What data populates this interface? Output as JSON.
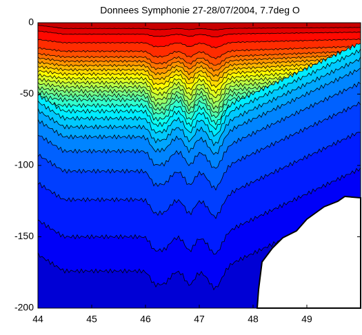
{
  "chart_data": {
    "type": "contour",
    "title": "Donnees Symphonie 27-28/07/2004, 7.7deg O",
    "xlim": [
      44,
      50
    ],
    "xticks": [
      44,
      45,
      46,
      47,
      48,
      49
    ],
    "ylim": [
      -200,
      0
    ],
    "yticks": [
      0,
      -50,
      -100,
      -150,
      -200
    ]
  }
}
